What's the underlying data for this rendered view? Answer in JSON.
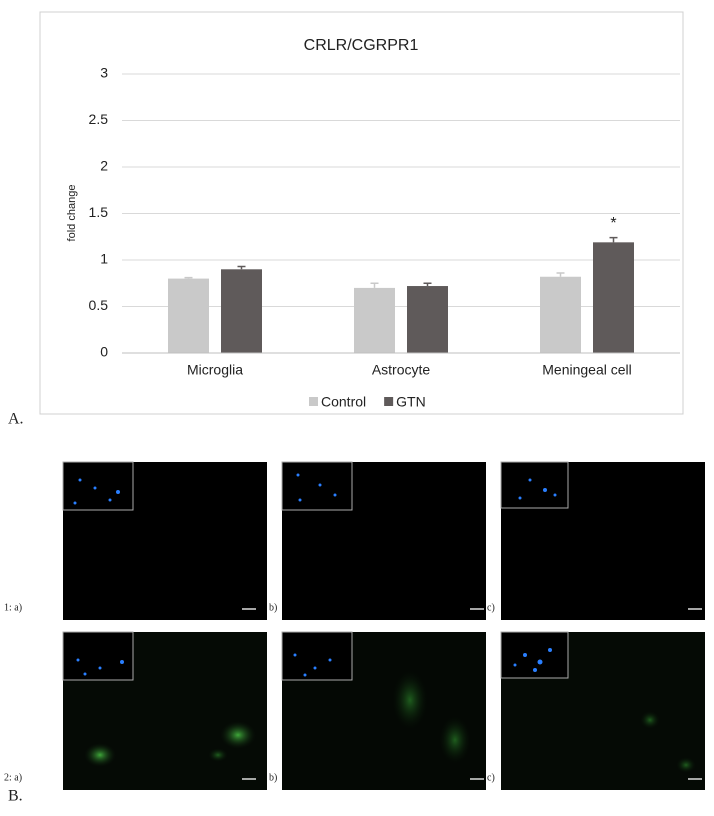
{
  "chart_data": {
    "type": "bar",
    "title": "CRLR/CGRPR1",
    "y_label": "fold change",
    "categories": [
      "Microglia",
      "Astrocyte",
      "Meningeal cell"
    ],
    "series": [
      {
        "name": "Control",
        "color": "#c9c9c9",
        "values": [
          0.8,
          0.7,
          0.82
        ],
        "errors": [
          0.01,
          0.05,
          0.04
        ]
      },
      {
        "name": "GTN",
        "color": "#5f5a5a",
        "values": [
          0.9,
          0.72,
          1.19
        ],
        "errors": [
          0.03,
          0.03,
          0.05
        ]
      }
    ],
    "annotation": "*",
    "ylim": [
      0,
      3
    ],
    "yticks": [
      0,
      0.5,
      1,
      1.5,
      2,
      2.5,
      3
    ],
    "grid": true,
    "legend": "bottom"
  },
  "panel_labels": [
    "A.",
    "B."
  ],
  "image_labels": [
    "1: a)",
    "b)",
    "c)",
    "2: a)",
    "b)",
    "c)"
  ]
}
